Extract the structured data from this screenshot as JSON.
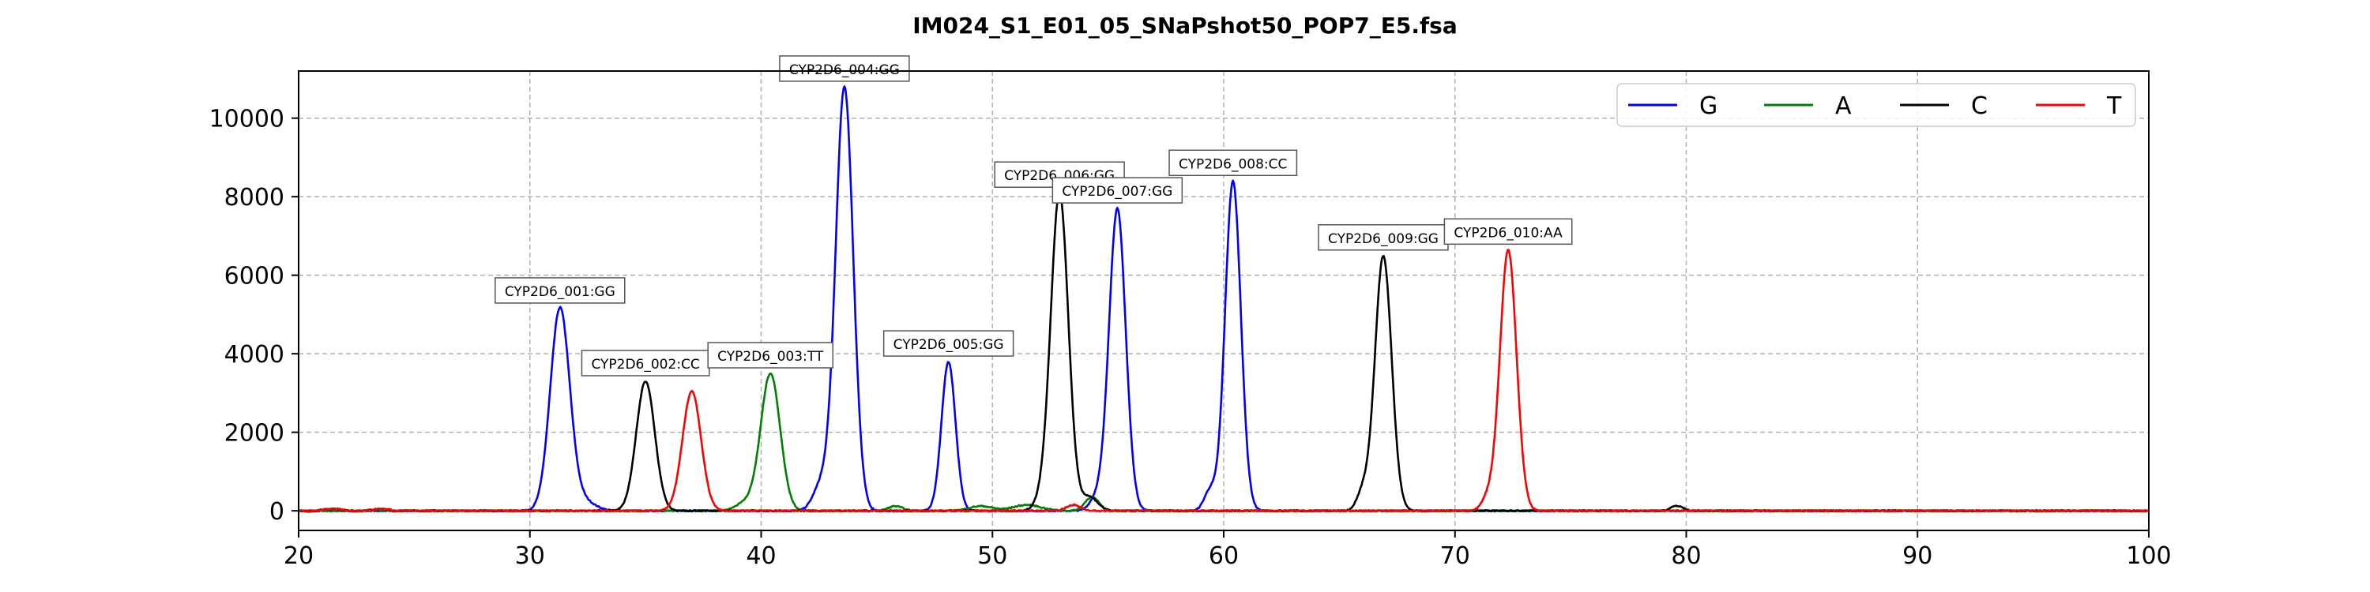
{
  "chart_data": {
    "type": "line",
    "title": "IM024_S1_E01_05_SNaPshot50_POP7_E5.fsa",
    "xlabel": "",
    "ylabel": "",
    "xlim": [
      20,
      100
    ],
    "ylim": [
      -500,
      11200
    ],
    "xticks": [
      20,
      30,
      40,
      50,
      60,
      70,
      80,
      90,
      100
    ],
    "yticks": [
      0,
      2000,
      4000,
      6000,
      8000,
      10000
    ],
    "grid": true,
    "legend_position": "top-right",
    "series": [
      {
        "name": "G",
        "color": "#0000ff",
        "peaks": [
          {
            "x": 31.3,
            "y": 5150,
            "w": 0.42
          },
          {
            "x": 43.6,
            "y": 10800,
            "w": 0.38
          },
          {
            "x": 48.1,
            "y": 3800,
            "w": 0.3
          },
          {
            "x": 55.4,
            "y": 7700,
            "w": 0.36
          },
          {
            "x": 60.4,
            "y": 8400,
            "w": 0.34
          },
          {
            "x": 42.6,
            "y": 650,
            "w": 0.35
          },
          {
            "x": 59.4,
            "y": 500,
            "w": 0.25
          },
          {
            "x": 54.5,
            "y": 300,
            "w": 0.3
          },
          {
            "x": 32.3,
            "y": 250,
            "w": 0.5
          }
        ]
      },
      {
        "name": "A",
        "color": "#008000",
        "peaks": [
          {
            "x": 40.4,
            "y": 3500,
            "w": 0.42
          },
          {
            "x": 54.3,
            "y": 350,
            "w": 0.3
          },
          {
            "x": 39.3,
            "y": 200,
            "w": 0.4
          },
          {
            "x": 51.5,
            "y": 150,
            "w": 0.6
          },
          {
            "x": 45.8,
            "y": 120,
            "w": 0.3
          },
          {
            "x": 49.5,
            "y": 120,
            "w": 0.5
          }
        ]
      },
      {
        "name": "C",
        "color": "#000000",
        "peaks": [
          {
            "x": 35.0,
            "y": 3300,
            "w": 0.4
          },
          {
            "x": 52.9,
            "y": 8100,
            "w": 0.38
          },
          {
            "x": 66.9,
            "y": 6500,
            "w": 0.36
          },
          {
            "x": 66.0,
            "y": 450,
            "w": 0.25
          },
          {
            "x": 54.2,
            "y": 350,
            "w": 0.35
          },
          {
            "x": 52.1,
            "y": 200,
            "w": 0.3
          },
          {
            "x": 79.6,
            "y": 130,
            "w": 0.25
          }
        ]
      },
      {
        "name": "T",
        "color": "#ff0000",
        "peaks": [
          {
            "x": 37.0,
            "y": 3050,
            "w": 0.4
          },
          {
            "x": 72.3,
            "y": 6650,
            "w": 0.36
          },
          {
            "x": 71.4,
            "y": 300,
            "w": 0.25
          },
          {
            "x": 53.5,
            "y": 150,
            "w": 0.3
          }
        ]
      }
    ],
    "annotations": [
      {
        "text": "CYP2D6_001:GG",
        "x": 31.3,
        "y": 5150
      },
      {
        "text": "CYP2D6_002:CC",
        "x": 35.0,
        "y": 3300
      },
      {
        "text": "CYP2D6_003:TT",
        "x": 40.4,
        "y": 3500
      },
      {
        "text": "CYP2D6_004:GG",
        "x": 43.6,
        "y": 10800
      },
      {
        "text": "CYP2D6_005:GG",
        "x": 48.1,
        "y": 3800
      },
      {
        "text": "CYP2D6_006:GG",
        "x": 52.9,
        "y": 8100
      },
      {
        "text": "CYP2D6_007:GG",
        "x": 55.4,
        "y": 7700
      },
      {
        "text": "CYP2D6_008:CC",
        "x": 60.4,
        "y": 8400
      },
      {
        "text": "CYP2D6_009:GG",
        "x": 66.9,
        "y": 6500
      },
      {
        "text": "CYP2D6_010:AA",
        "x": 72.3,
        "y": 6650
      }
    ]
  }
}
